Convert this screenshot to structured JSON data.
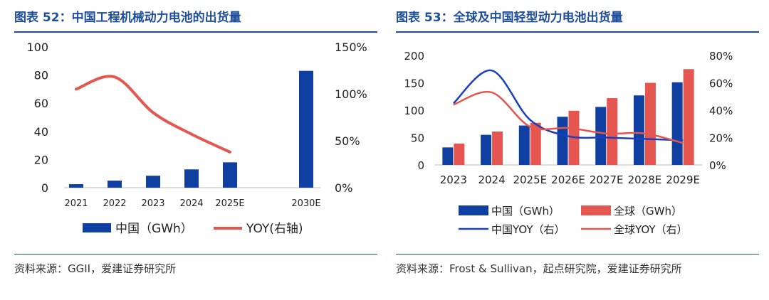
{
  "colors": {
    "title": "#1f4e9c",
    "bar_blue": "#0f3fa0",
    "bar_red": "#e4564f",
    "line_red": "#e4564f",
    "line_blue": "#1a3fbf"
  },
  "panel1": {
    "title": "图表 52：中国工程机械动力电池的出货量",
    "source": "资料来源：GGII，爱建证券研究所",
    "chart_data": {
      "type": "bar+line",
      "categories": [
        "2021",
        "2022",
        "2023",
        "2024",
        "2025E",
        "2030E"
      ],
      "series": [
        {
          "name": "中国（GWh）",
          "type": "bar",
          "axis": "left",
          "values": [
            2.5,
            5,
            8.5,
            13,
            18,
            83
          ]
        },
        {
          "name": "YOY(右轴)",
          "type": "line",
          "axis": "right",
          "values": [
            105,
            118,
            80,
            57,
            38,
            null
          ]
        }
      ],
      "ylim_left": [
        0,
        100
      ],
      "yticks_left": [
        "0",
        "20",
        "40",
        "60",
        "80",
        "100"
      ],
      "ylim_right": [
        0,
        150
      ],
      "yticks_right": [
        "0%",
        "50%",
        "100%",
        "150%"
      ],
      "legend": [
        "中国（GWh）",
        "YOY(右轴)"
      ]
    }
  },
  "panel2": {
    "title": "图表 53：全球及中国轻型动力电池出货量",
    "source": "资料来源：Frost & Sullivan，起点研究院，爱建证券研究所",
    "chart_data": {
      "type": "bar+line",
      "categories": [
        "2023",
        "2024",
        "2025E",
        "2026E",
        "2027E",
        "2028E",
        "2029E"
      ],
      "series": [
        {
          "name": "中国（GWh）",
          "type": "bar",
          "axis": "left",
          "values": [
            32,
            55,
            72,
            88,
            106,
            127,
            151
          ]
        },
        {
          "name": "全球（GWh）",
          "type": "bar",
          "axis": "left",
          "values": [
            39,
            61,
            77,
            99,
            122,
            150,
            175
          ]
        },
        {
          "name": "中国YOY（右）",
          "type": "line",
          "axis": "right",
          "values": [
            45,
            69,
            33,
            21,
            20,
            19,
            18
          ]
        },
        {
          "name": "全球YOY（右）",
          "type": "line",
          "axis": "right",
          "values": [
            44,
            53,
            28,
            27,
            23,
            23,
            16
          ]
        }
      ],
      "ylim_left": [
        0,
        200
      ],
      "yticks_left": [
        "0",
        "50",
        "100",
        "150",
        "200"
      ],
      "ylim_right": [
        0,
        80
      ],
      "yticks_right": [
        "0%",
        "20%",
        "40%",
        "60%",
        "80%"
      ],
      "legend": [
        "中国（GWh）",
        "全球（GWh）",
        "中国YOY（右）",
        "全球YOY（右）"
      ]
    }
  }
}
